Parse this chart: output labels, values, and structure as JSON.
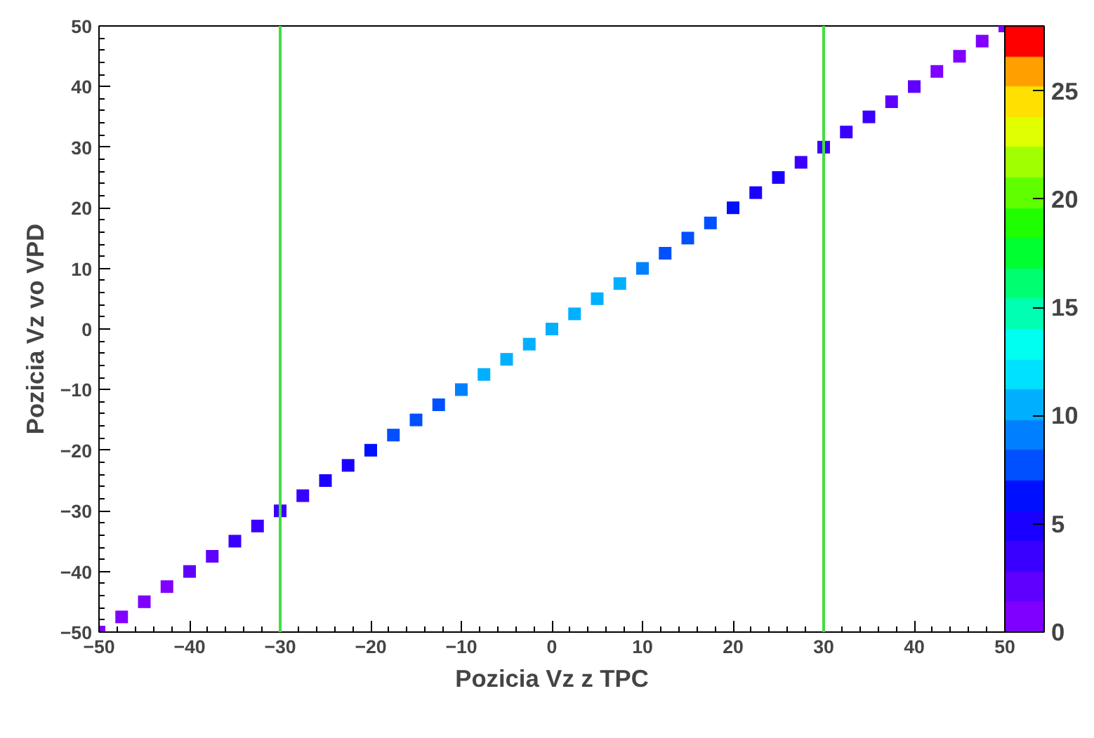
{
  "chart_data": {
    "type": "scatter",
    "xlabel": "Pozicia Vz z TPC",
    "ylabel": "Pozicia Vz vo VPD",
    "x": [
      -50,
      -47.5,
      -45,
      -42.5,
      -40,
      -37.5,
      -35,
      -32.5,
      -30,
      -27.5,
      -25,
      -22.5,
      -20,
      -17.5,
      -15,
      -12.5,
      -10,
      -7.5,
      -5,
      -2.5,
      0,
      2.5,
      5,
      7.5,
      10,
      12.5,
      15,
      17.5,
      20,
      22.5,
      25,
      27.5,
      30,
      32.5,
      35,
      37.5,
      40,
      42.5,
      45,
      47.5,
      50
    ],
    "values": [
      -50,
      -47.5,
      -45,
      -42.5,
      -40,
      -37.5,
      -35,
      -32.5,
      -30,
      -27.5,
      -25,
      -22.5,
      -20,
      -17.5,
      -15,
      -12.5,
      -10,
      -7.5,
      -5,
      -2.5,
      0,
      2.5,
      5,
      7.5,
      10,
      12.5,
      15,
      17.5,
      20,
      22.5,
      25,
      27.5,
      30,
      32.5,
      35,
      37.5,
      40,
      42.5,
      45,
      47.5,
      50
    ],
    "cvalues": [
      1,
      1,
      1,
      1,
      2,
      2,
      3,
      3,
      4,
      4,
      5,
      5,
      6,
      7,
      7,
      8,
      9,
      10,
      10,
      11,
      11,
      11,
      10,
      10,
      9,
      8,
      7,
      7,
      6,
      5,
      5,
      4,
      4,
      3,
      3,
      2,
      2,
      1,
      1,
      1,
      1
    ],
    "clim": [
      0,
      28
    ],
    "cticks": [
      0,
      5,
      10,
      15,
      20,
      25
    ],
    "xlim": [
      -50,
      50
    ],
    "ylim": [
      -50,
      50
    ],
    "xticks": [
      -50,
      -40,
      -30,
      -20,
      -10,
      0,
      10,
      20,
      30,
      40,
      50
    ],
    "yticks": [
      -50,
      -40,
      -30,
      -20,
      -10,
      0,
      10,
      20,
      30,
      40,
      50
    ],
    "ref_lines": [
      {
        "axis": "x",
        "value": -30,
        "color": "#44dd44"
      },
      {
        "axis": "x",
        "value": 30,
        "color": "#44dd44"
      }
    ],
    "marker": "square",
    "grid": false
  }
}
